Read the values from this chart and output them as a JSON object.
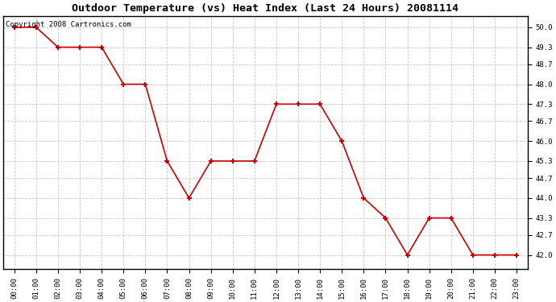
{
  "title": "Outdoor Temperature (vs) Heat Index (Last 24 Hours) 20081114",
  "copyright_text": "Copyright 2008 Cartronics.com",
  "x_labels": [
    "00:00",
    "01:00",
    "02:00",
    "03:00",
    "04:00",
    "05:00",
    "06:00",
    "07:00",
    "08:00",
    "09:00",
    "10:00",
    "11:00",
    "12:00",
    "13:00",
    "14:00",
    "15:00",
    "16:00",
    "17:00",
    "18:00",
    "19:00",
    "20:00",
    "21:00",
    "22:00",
    "23:00"
  ],
  "y_values": [
    50.0,
    50.0,
    49.3,
    49.3,
    49.3,
    48.0,
    48.0,
    45.3,
    44.0,
    45.3,
    45.3,
    45.3,
    47.3,
    47.3,
    47.3,
    46.0,
    44.0,
    43.3,
    42.0,
    43.3,
    43.3,
    42.0,
    42.0,
    42.0
  ],
  "y_ticks": [
    42.0,
    42.7,
    43.3,
    44.0,
    44.7,
    45.3,
    46.0,
    46.7,
    47.3,
    48.0,
    48.7,
    49.3,
    50.0
  ],
  "ylim": [
    41.5,
    50.4
  ],
  "line_color": "#cc0000",
  "marker_color": "#cc0000",
  "background_color": "#ffffff",
  "grid_color": "#c8c8c8",
  "title_fontsize": 9.5,
  "copyright_fontsize": 6.5,
  "tick_fontsize": 6.5
}
